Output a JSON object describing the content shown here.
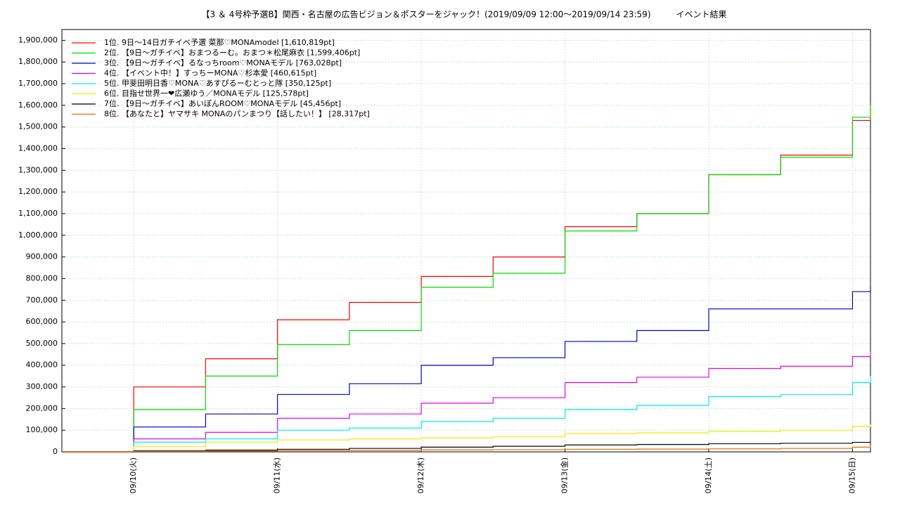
{
  "chart_data": {
    "type": "line",
    "title": "【3 ＆ 4号枠予選B】関西・名古屋の広告ビジョン＆ポスターをジャック！(2019/09/09 12:00〜2019/09/14 23:59)　　　イベント結果",
    "x": [
      9.5,
      10,
      10.5,
      11,
      11.5,
      12,
      12.5,
      13,
      13.5,
      14,
      14.5,
      15,
      15.125
    ],
    "xlim": [
      9.5,
      15.125
    ],
    "xticks": [
      {
        "value": 10,
        "label": "09/10(火)"
      },
      {
        "value": 11,
        "label": "09/11(水)"
      },
      {
        "value": 12,
        "label": "09/12(木)"
      },
      {
        "value": 13,
        "label": "09/13(金)"
      },
      {
        "value": 14,
        "label": "09/14(土)"
      },
      {
        "value": 15,
        "label": "09/15(日)"
      }
    ],
    "ylim": [
      0,
      1950000
    ],
    "yticks": [
      0,
      {
        "value": 100000,
        "label": "100,000"
      },
      {
        "value": 200000,
        "label": "200,000"
      },
      {
        "value": 300000,
        "label": "300,000"
      },
      {
        "value": 400000,
        "label": "400,000"
      },
      {
        "value": 500000,
        "label": "500,000"
      },
      {
        "value": 600000,
        "label": "600,000"
      },
      {
        "value": 700000,
        "label": "700,000"
      },
      {
        "value": 800000,
        "label": "800,000"
      },
      {
        "value": 900000,
        "label": "900,000"
      },
      {
        "value": 1000000,
        "label": "1,000,000"
      },
      {
        "value": 1100000,
        "label": "1,100,000"
      },
      {
        "value": 1200000,
        "label": "1,200,000"
      },
      {
        "value": 1300000,
        "label": "1,300,000"
      },
      {
        "value": 1400000,
        "label": "1,400,000"
      },
      {
        "value": 1500000,
        "label": "1,500,000"
      },
      {
        "value": 1600000,
        "label": "1,600,000"
      },
      {
        "value": 1700000,
        "label": "1,700,000"
      },
      {
        "value": 1800000,
        "label": "1,800,000"
      },
      {
        "value": 1900000,
        "label": "1,900,000"
      }
    ],
    "grid": true,
    "legend": "upper left",
    "step": true,
    "series": [
      {
        "name": "1位. 9日〜14日ガチイベ予選  菜那♡MONAmodel [1,610,819pt]",
        "color": "#ff0000",
        "values": [
          0,
          300000,
          430000,
          610000,
          690000,
          810000,
          900000,
          1040000,
          1100000,
          1280000,
          1370000,
          1530000,
          1610819
        ]
      },
      {
        "name": "2位. 【9日〜ガチイベ】おまつるーむ。おまつ＊松尾麻衣 [1,599,406pt]",
        "color": "#00dd00",
        "values": [
          0,
          195000,
          350000,
          495000,
          560000,
          760000,
          825000,
          1020000,
          1100000,
          1280000,
          1360000,
          1545000,
          1599406
        ]
      },
      {
        "name": "3位. 【9日〜ガチイベ】るなっちroom♡MONAモデル [763,028pt]",
        "color": "#0000cc",
        "values": [
          0,
          115000,
          175000,
          265000,
          315000,
          400000,
          435000,
          510000,
          560000,
          660000,
          660000,
          740000,
          763028
        ]
      },
      {
        "name": "4位. 【イベント中！】すっちーMONA♡杉本愛 [460,615pt]",
        "color": "#ee00ee",
        "values": [
          0,
          60000,
          90000,
          155000,
          175000,
          225000,
          250000,
          320000,
          345000,
          385000,
          395000,
          440000,
          460615
        ]
      },
      {
        "name": "5位. 甲斐田明日香♡MONA♡あすぴるーむとっと隊 [350,125pt]",
        "color": "#00eeee",
        "values": [
          0,
          45000,
          60000,
          100000,
          110000,
          140000,
          155000,
          195000,
          215000,
          255000,
          265000,
          320000,
          350125
        ]
      },
      {
        "name": "6位. 目指せ世界一❤広瀬ゆう／MONAモデル [125,578pt]",
        "color": "#eeee00",
        "values": [
          0,
          25000,
          45000,
          55000,
          60000,
          65000,
          70000,
          85000,
          88000,
          95000,
          100000,
          118000,
          125578
        ]
      },
      {
        "name": "7位. 【9日〜ガチイベ】あいぽんROOM♡MONAモデル [45,456pt]",
        "color": "#000000",
        "values": [
          0,
          5000,
          8000,
          12000,
          16000,
          22000,
          26000,
          32000,
          34000,
          38000,
          40000,
          44000,
          45456
        ]
      },
      {
        "name": "8位. 【あなたと】ヤマサキ MONAのパンまつり【話したい！】 [28,317pt]",
        "color": "#ee6600",
        "values": [
          0,
          2000,
          4000,
          6000,
          7000,
          9000,
          10000,
          12000,
          13000,
          14000,
          16000,
          22000,
          28317
        ]
      }
    ]
  }
}
